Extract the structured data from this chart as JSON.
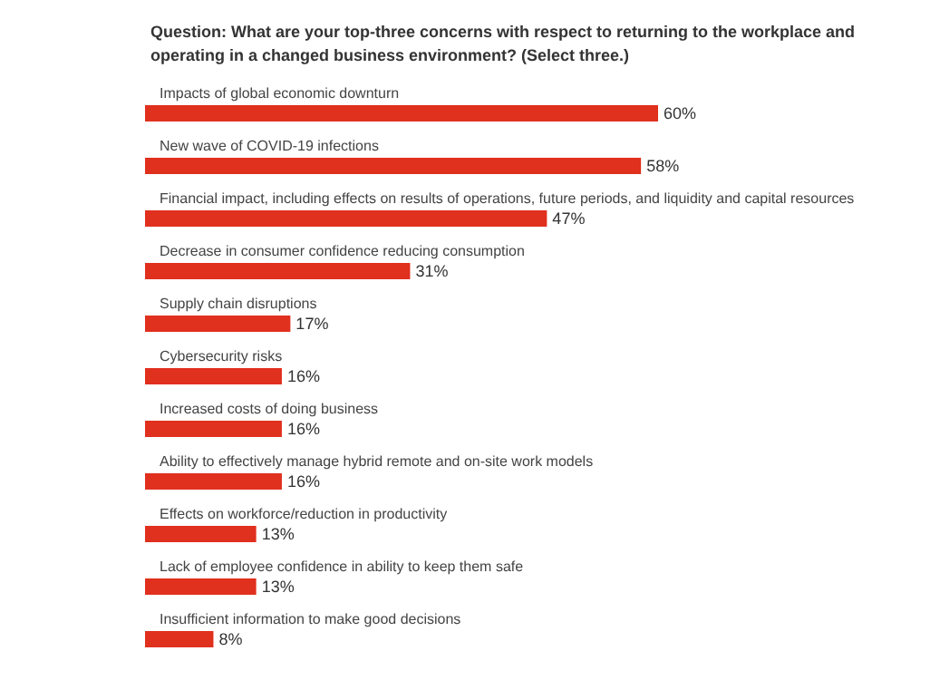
{
  "chart_data": {
    "type": "bar",
    "orientation": "horizontal",
    "title": "Question: What are your top-three concerns with respect to returning to the workplace and operating in a changed business environment? (Select three.)",
    "categories": [
      "Impacts of global economic downturn",
      "New wave of COVID-19 infections",
      "Financial impact, including effects on results of operations, future periods, and liquidity and capital resources",
      "Decrease in consumer confidence reducing consumption",
      "Supply chain disruptions",
      "Cybersecurity risks",
      "Increased costs of doing business",
      "Ability to effectively manage hybrid remote and on-site work models",
      "Effects on workforce/reduction in productivity",
      "Lack of employee confidence in ability to keep them safe",
      "Insufficient information to make good decisions"
    ],
    "values": [
      60,
      58,
      47,
      31,
      17,
      16,
      16,
      16,
      13,
      13,
      8
    ],
    "value_labels": [
      "60%",
      "58%",
      "47%",
      "31%",
      "17%",
      "16%",
      "16%",
      "16%",
      "13%",
      "13%",
      "8%"
    ],
    "color": "#e0301e"
  }
}
